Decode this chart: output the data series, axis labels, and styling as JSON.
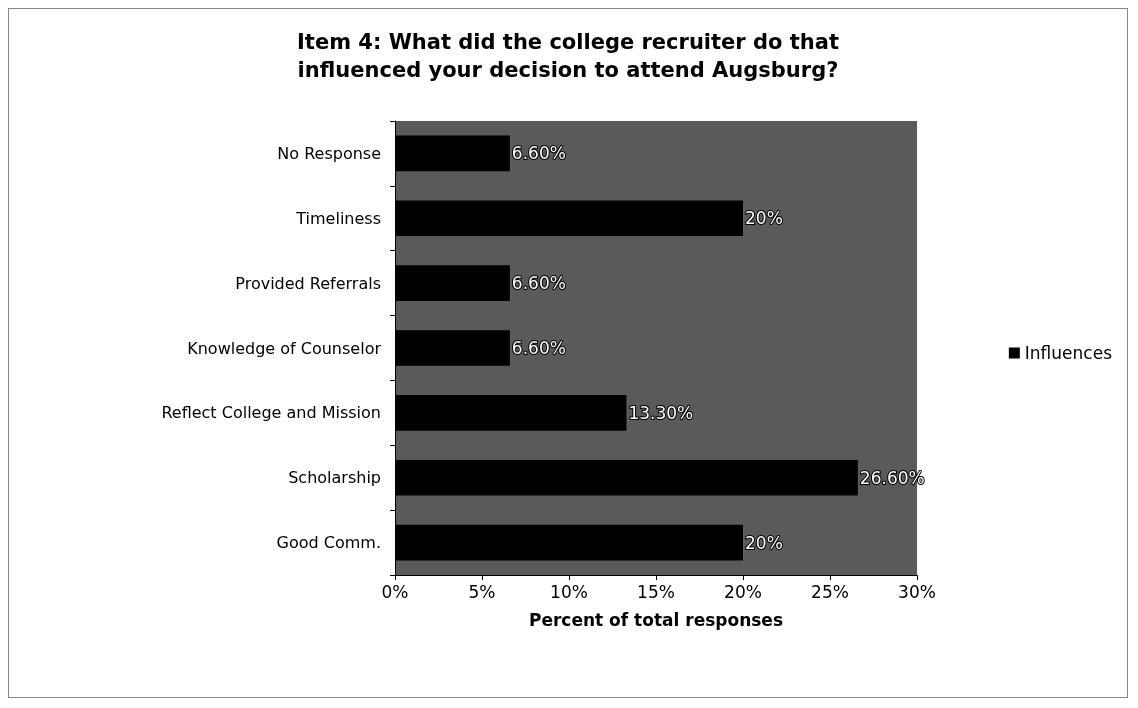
{
  "chart_data": {
    "type": "bar",
    "orientation": "horizontal",
    "title": "Item 4: What did the college recruiter do that\ninfluenced your decision to attend Augsburg?",
    "xlabel": "Percent of total responses",
    "categories": [
      "No Response",
      "Timeliness",
      "Provided Referrals",
      "Knowledge of Counselor",
      "Reflect College and Mission",
      "Scholarship",
      "Good Comm."
    ],
    "series": [
      {
        "name": "Influences",
        "color": "#000000",
        "values": [
          6.6,
          20,
          6.6,
          6.6,
          13.3,
          26.6,
          20
        ],
        "value_labels": [
          "6.60%",
          "20%",
          "6.60%",
          "6.60%",
          "13.30%",
          "26.60%",
          "20%"
        ]
      }
    ],
    "xlim": [
      0,
      30
    ],
    "xticks": [
      {
        "value": 0,
        "label": "0%"
      },
      {
        "value": 5,
        "label": "5%"
      },
      {
        "value": 10,
        "label": "10%"
      },
      {
        "value": 15,
        "label": "15%"
      },
      {
        "value": 20,
        "label": "20%"
      },
      {
        "value": 25,
        "label": "25%"
      },
      {
        "value": 30,
        "label": "30%"
      }
    ],
    "grid": false,
    "legend": "right"
  }
}
